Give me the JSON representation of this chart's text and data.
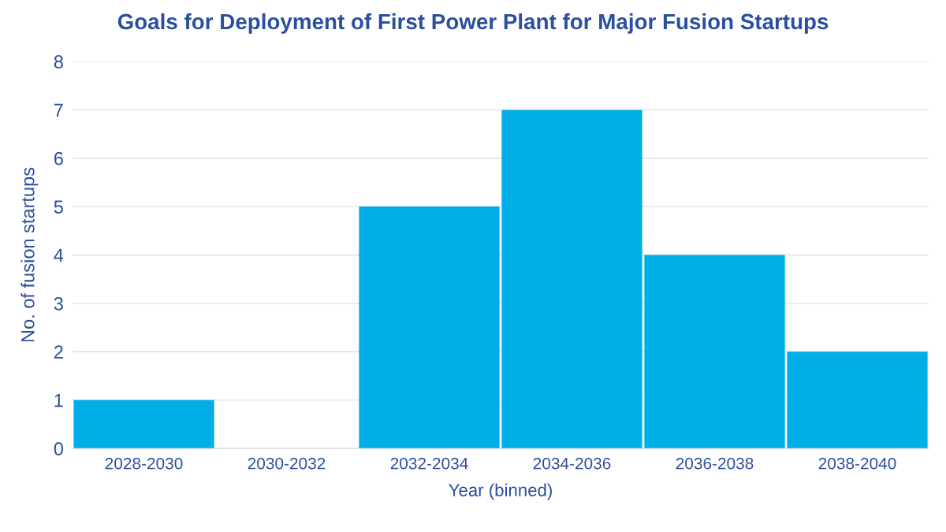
{
  "chart_data": {
    "type": "bar",
    "title": "Goals for Deployment of First Power Plant for Major Fusion Startups",
    "xlabel": "Year (binned)",
    "ylabel": "No. of fusion startups",
    "categories": [
      "2028-2030",
      "2030-2032",
      "2032-2034",
      "2034-2036",
      "2036-2038",
      "2038-2040"
    ],
    "values": [
      1,
      0,
      5,
      7,
      4,
      2
    ],
    "color": "#00aee8",
    "ylim": [
      0,
      8
    ],
    "yticks": [
      0,
      1,
      2,
      3,
      4,
      5,
      6,
      7,
      8
    ],
    "grid": "y"
  }
}
